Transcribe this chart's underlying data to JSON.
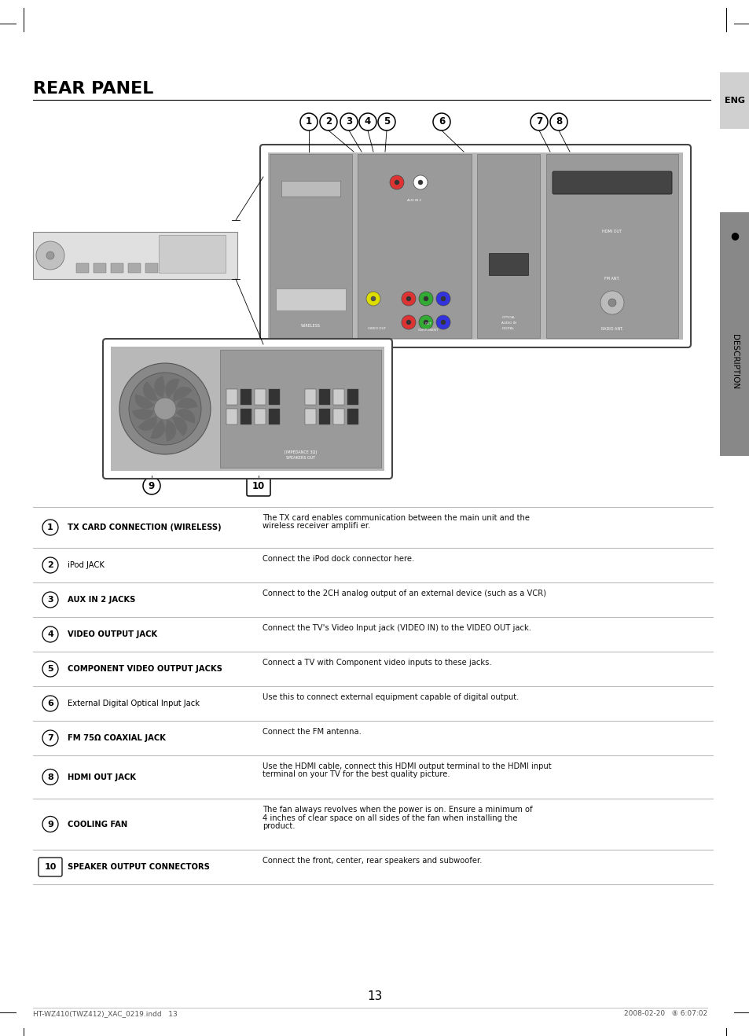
{
  "title": "REAR PANEL",
  "page_number": "13",
  "footer_left": "HT-WZ410(TWZ412)_XAC_0219.indd   13",
  "footer_right": "2008-02-20   ⑧ 6:07:02",
  "table_rows": [
    {
      "num": "1",
      "label": "TX CARD CONNECTION (WIRELESS)",
      "bold": true,
      "desc": "The TX card enables communication between the main unit and the\nwireless receiver amplifi er."
    },
    {
      "num": "2",
      "label": "iPod JACK",
      "bold": false,
      "desc": "Connect the iPod dock connector here."
    },
    {
      "num": "3",
      "label": "AUX IN 2 JACKS",
      "bold": true,
      "desc": "Connect to the 2CH analog output of an external device (such as a VCR)"
    },
    {
      "num": "4",
      "label": "VIDEO OUTPUT JACK",
      "bold": true,
      "desc": "Connect the TV's Video Input jack (VIDEO IN) to the VIDEO OUT jack."
    },
    {
      "num": "5",
      "label": "COMPONENT VIDEO OUTPUT JACKS",
      "bold": true,
      "desc": "Connect a TV with Component video inputs to these jacks."
    },
    {
      "num": "6",
      "label": "External Digital Optical Input Jack",
      "bold": false,
      "desc": "Use this to connect external equipment capable of digital output."
    },
    {
      "num": "7",
      "label": "FM 75Ω COAXIAL JACK",
      "bold": true,
      "desc": "Connect the FM antenna."
    },
    {
      "num": "8",
      "label": "HDMI OUT JACK",
      "bold": true,
      "desc": "Use the HDMI cable, connect this HDMI output terminal to the HDMI input\nterminal on your TV for the best quality picture."
    },
    {
      "num": "9",
      "label": "COOLING FAN",
      "bold": true,
      "desc": "The fan always revolves when the power is on. Ensure a minimum of\n4 inches of clear space on all sides of the fan when installing the\nproduct."
    },
    {
      "num": "10",
      "label": "SPEAKER OUTPUT CONNECTORS",
      "bold": true,
      "desc": "Connect the front, center, rear speakers and subwoofer."
    }
  ],
  "bg_color": "#ffffff",
  "table_line_color": "#bbbbbb",
  "title_color": "#000000"
}
